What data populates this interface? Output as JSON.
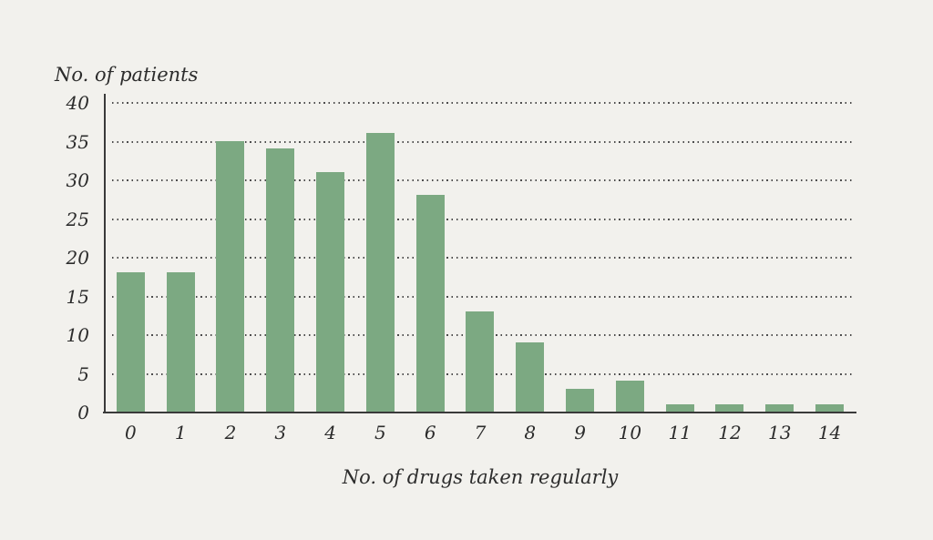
{
  "page": {
    "background_color": "#f2f1ed",
    "text_color": "#2c2c2c",
    "axis_color": "#3a3a3a",
    "gridline_color": "#4d4d4d"
  },
  "chart_data": {
    "type": "bar",
    "title": "",
    "ylabel": "No. of patients",
    "xlabel": "No. of drugs taken regularly",
    "categories": [
      "0",
      "1",
      "2",
      "3",
      "4",
      "5",
      "6",
      "7",
      "8",
      "9",
      "10",
      "11",
      "12",
      "13",
      "14"
    ],
    "values": [
      18,
      18,
      35,
      34,
      31,
      36,
      28,
      13,
      9,
      3,
      4,
      1,
      1,
      1,
      1
    ],
    "yticks": [
      0,
      5,
      10,
      15,
      20,
      25,
      30,
      35,
      40
    ],
    "ylim": [
      0,
      40
    ],
    "bar_color": "#7ca982",
    "grid": "horizontal dotted lines at each y tick",
    "legend_position": "none"
  }
}
